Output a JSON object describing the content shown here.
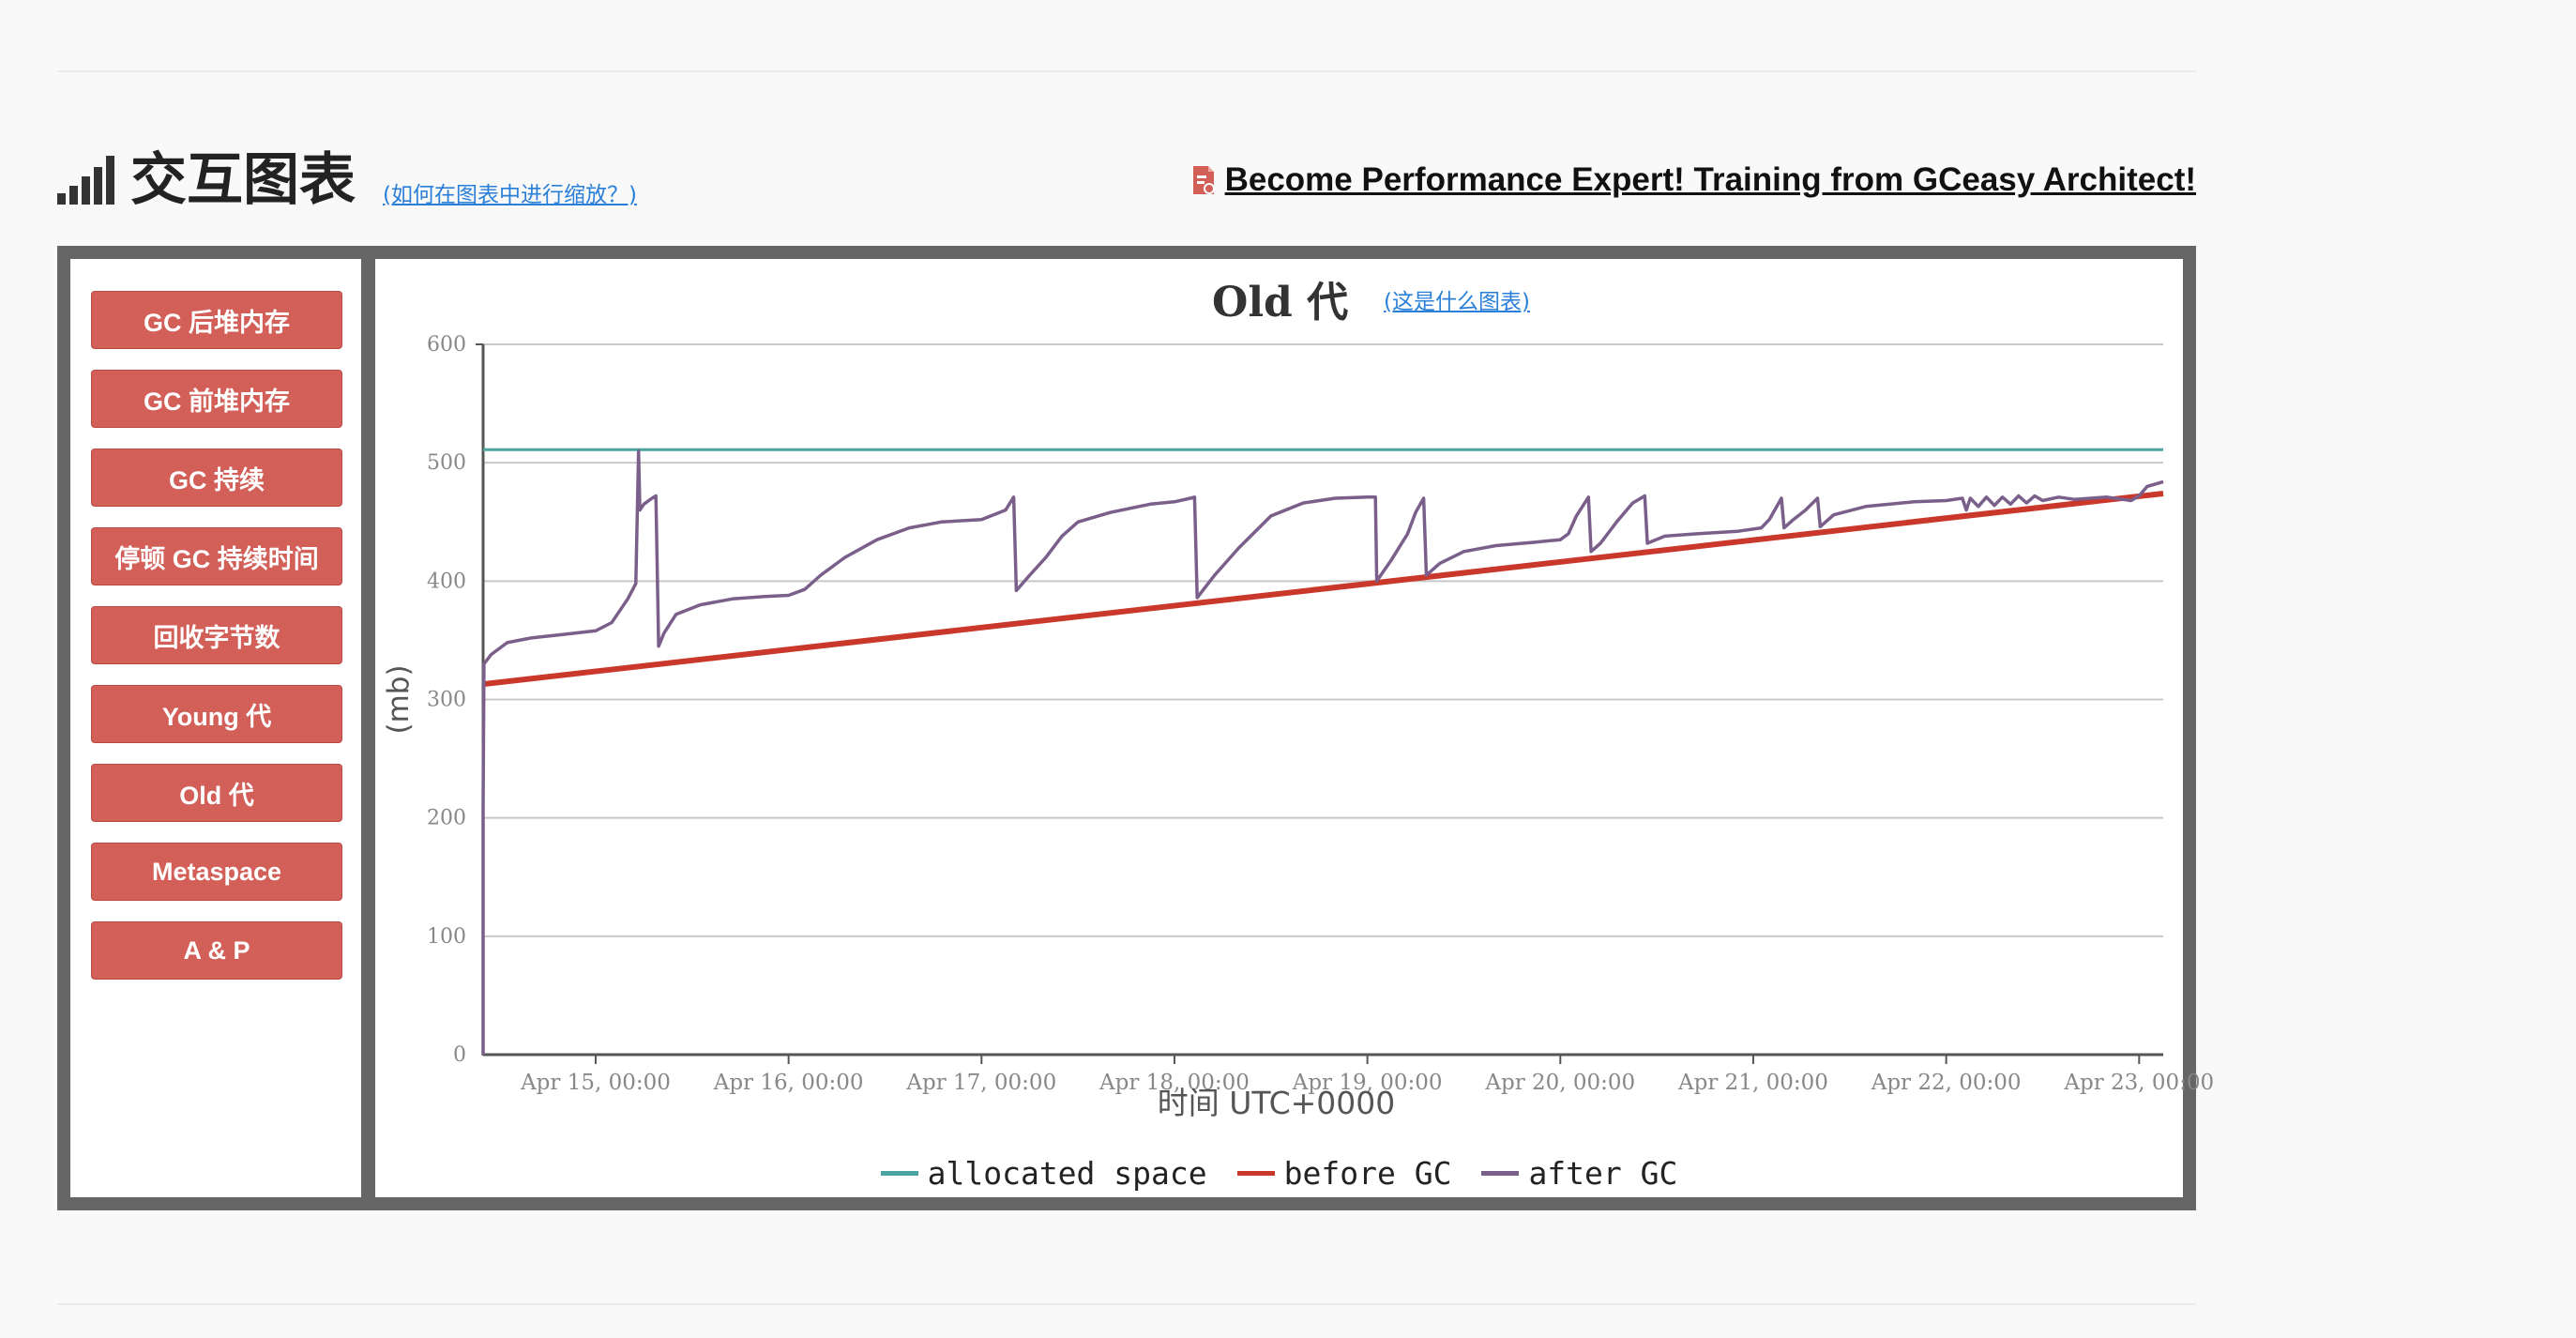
{
  "header": {
    "title": "交互图表",
    "zoom_help_link": "(如何在图表中进行缩放？)",
    "promo_link": "Become Performance Expert! Training from GCeasy Architect!",
    "icons": {
      "section": "signal-bars-icon",
      "promo": "training-doc-icon"
    }
  },
  "sidebar": {
    "items": [
      {
        "label": "GC 后堆内存"
      },
      {
        "label": "GC 前堆内存"
      },
      {
        "label": "GC 持续"
      },
      {
        "label": "停顿 GC 持续时间"
      },
      {
        "label": "回收字节数"
      },
      {
        "label": "Young 代"
      },
      {
        "label": "Old 代"
      },
      {
        "label": "Metaspace"
      },
      {
        "label": "A & P"
      }
    ],
    "button_color": "#d25f58"
  },
  "chart": {
    "title": "Old 代",
    "what_link": "(这是什么图表)"
  },
  "chart_data": {
    "type": "line",
    "title": "Old 代",
    "xlabel": "时间 UTC+0000",
    "ylabel": "(mb)",
    "ylim": [
      0,
      600
    ],
    "yticks": [
      "0",
      "100",
      "200",
      "300",
      "400",
      "500",
      "600"
    ],
    "xlim": [
      "Apr 14, 10:00",
      "Apr 23, 03:00"
    ],
    "xticks": [
      "Apr 15, 00:00",
      "Apr 16, 00:00",
      "Apr 17, 00:00",
      "Apr 18, 00:00",
      "Apr 19, 00:00",
      "Apr 20, 00:00",
      "Apr 21, 00:00",
      "Apr 22, 00:00",
      "Apr 23, 00:00"
    ],
    "grid": true,
    "legend": "bottom",
    "series": [
      {
        "name": "allocated space",
        "color": "#4aa5a0",
        "points": [
          [
            "Apr 14, 10:00",
            511
          ],
          [
            "Apr 23, 03:00",
            511
          ]
        ]
      },
      {
        "name": "before GC",
        "color": "#c9382a",
        "points": [
          [
            "Apr 14, 10:00",
            313
          ],
          [
            "Apr 23, 03:00",
            474
          ]
        ]
      },
      {
        "name": "after GC",
        "color": "#7a5f8a",
        "points": [
          [
            "Apr 14, 10:00",
            0
          ],
          [
            "Apr 14, 10:00",
            210
          ],
          [
            "Apr 14, 10:06",
            330
          ],
          [
            "Apr 14, 11:00",
            338
          ],
          [
            "Apr 14, 13:00",
            348
          ],
          [
            "Apr 14, 16:00",
            352
          ],
          [
            "Apr 14, 20:00",
            355
          ],
          [
            "Apr 15, 00:00",
            358
          ],
          [
            "Apr 15, 02:00",
            365
          ],
          [
            "Apr 15, 04:00",
            385
          ],
          [
            "Apr 15, 05:00",
            398
          ],
          [
            "Apr 15, 05:20",
            510
          ],
          [
            "Apr 15, 05:30",
            460
          ],
          [
            "Apr 15, 06:00",
            465
          ],
          [
            "Apr 15, 07:00",
            470
          ],
          [
            "Apr 15, 07:30",
            472
          ],
          [
            "Apr 15, 07:50",
            345
          ],
          [
            "Apr 15, 08:30",
            356
          ],
          [
            "Apr 15, 10:00",
            372
          ],
          [
            "Apr 15, 13:00",
            380
          ],
          [
            "Apr 15, 17:00",
            385
          ],
          [
            "Apr 15, 21:00",
            387
          ],
          [
            "Apr 16, 00:00",
            388
          ],
          [
            "Apr 16, 02:00",
            393
          ],
          [
            "Apr 16, 04:00",
            405
          ],
          [
            "Apr 16, 07:00",
            420
          ],
          [
            "Apr 16, 11:00",
            435
          ],
          [
            "Apr 16, 15:00",
            445
          ],
          [
            "Apr 16, 19:00",
            450
          ],
          [
            "Apr 17, 00:00",
            452
          ],
          [
            "Apr 17, 03:00",
            460
          ],
          [
            "Apr 17, 04:00",
            471
          ],
          [
            "Apr 17, 04:20",
            392
          ],
          [
            "Apr 17, 06:00",
            405
          ],
          [
            "Apr 17, 08:00",
            420
          ],
          [
            "Apr 17, 10:00",
            438
          ],
          [
            "Apr 17, 12:00",
            450
          ],
          [
            "Apr 17, 16:00",
            458
          ],
          [
            "Apr 17, 21:00",
            465
          ],
          [
            "Apr 18, 00:00",
            467
          ],
          [
            "Apr 18, 02:00",
            470
          ],
          [
            "Apr 18, 02:30",
            471
          ],
          [
            "Apr 18, 02:50",
            386
          ],
          [
            "Apr 18, 05:00",
            405
          ],
          [
            "Apr 18, 08:00",
            428
          ],
          [
            "Apr 18, 12:00",
            455
          ],
          [
            "Apr 18, 16:00",
            466
          ],
          [
            "Apr 18, 20:00",
            470
          ],
          [
            "Apr 19, 00:00",
            471
          ],
          [
            "Apr 19, 01:00",
            471
          ],
          [
            "Apr 19, 01:10",
            400
          ],
          [
            "Apr 19, 03:00",
            418
          ],
          [
            "Apr 19, 05:00",
            440
          ],
          [
            "Apr 19, 06:00",
            458
          ],
          [
            "Apr 19, 07:00",
            470
          ],
          [
            "Apr 19, 07:20",
            405
          ],
          [
            "Apr 19, 09:00",
            415
          ],
          [
            "Apr 19, 12:00",
            425
          ],
          [
            "Apr 19, 16:00",
            430
          ],
          [
            "Apr 19, 21:00",
            433
          ],
          [
            "Apr 20, 00:00",
            435
          ],
          [
            "Apr 20, 01:00",
            440
          ],
          [
            "Apr 20, 02:00",
            455
          ],
          [
            "Apr 20, 03:30",
            471
          ],
          [
            "Apr 20, 03:50",
            425
          ],
          [
            "Apr 20, 05:00",
            432
          ],
          [
            "Apr 20, 07:00",
            450
          ],
          [
            "Apr 20, 09:00",
            466
          ],
          [
            "Apr 20, 10:30",
            472
          ],
          [
            "Apr 20, 10:50",
            432
          ],
          [
            "Apr 20, 13:00",
            438
          ],
          [
            "Apr 20, 17:00",
            440
          ],
          [
            "Apr 20, 22:00",
            442
          ],
          [
            "Apr 21, 01:00",
            445
          ],
          [
            "Apr 21, 02:00",
            452
          ],
          [
            "Apr 21, 03:30",
            470
          ],
          [
            "Apr 21, 03:50",
            445
          ],
          [
            "Apr 21, 05:00",
            452
          ],
          [
            "Apr 21, 06:30",
            460
          ],
          [
            "Apr 21, 08:00",
            470
          ],
          [
            "Apr 21, 08:20",
            446
          ],
          [
            "Apr 21, 10:00",
            456
          ],
          [
            "Apr 21, 14:00",
            463
          ],
          [
            "Apr 21, 20:00",
            467
          ],
          [
            "Apr 22, 00:00",
            468
          ],
          [
            "Apr 22, 02:00",
            470
          ],
          [
            "Apr 22, 02:30",
            460
          ],
          [
            "Apr 22, 03:00",
            470
          ],
          [
            "Apr 22, 04:00",
            463
          ],
          [
            "Apr 22, 05:00",
            471
          ],
          [
            "Apr 22, 06:00",
            464
          ],
          [
            "Apr 22, 07:00",
            471
          ],
          [
            "Apr 22, 08:00",
            465
          ],
          [
            "Apr 22, 09:00",
            472
          ],
          [
            "Apr 22, 10:00",
            466
          ],
          [
            "Apr 22, 11:00",
            472
          ],
          [
            "Apr 22, 12:00",
            468
          ],
          [
            "Apr 22, 14:00",
            471
          ],
          [
            "Apr 22, 16:00",
            469
          ],
          [
            "Apr 22, 20:00",
            471
          ],
          [
            "Apr 22, 23:00",
            468
          ],
          [
            "Apr 23, 00:00",
            472
          ],
          [
            "Apr 23, 01:00",
            480
          ],
          [
            "Apr 23, 03:00",
            484
          ]
        ]
      }
    ]
  }
}
